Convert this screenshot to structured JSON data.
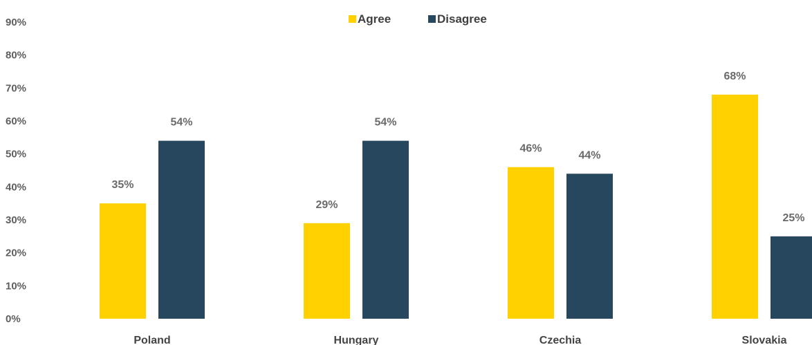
{
  "chart_data": {
    "type": "bar",
    "categories": [
      "Poland",
      "Hungary",
      "Czechia",
      "Slovakia"
    ],
    "series": [
      {
        "name": "Agree",
        "values": [
          35,
          29,
          46,
          68
        ],
        "labels": [
          "35%",
          "29%",
          "46%",
          "68%"
        ]
      },
      {
        "name": "Disagree",
        "values": [
          54,
          54,
          44,
          25
        ],
        "labels": [
          "54%",
          "54%",
          "44%",
          "25%"
        ]
      }
    ],
    "colors": {
      "Agree": "#ffd100",
      "Disagree": "#26475e"
    },
    "ylim": [
      0,
      90
    ],
    "yticks": [
      "0%",
      "10%",
      "20%",
      "30%",
      "40%",
      "50%",
      "60%",
      "70%",
      "80%",
      "90%"
    ],
    "legend_position": "top-center",
    "grid": false,
    "title": "",
    "xlabel": "",
    "ylabel": ""
  }
}
